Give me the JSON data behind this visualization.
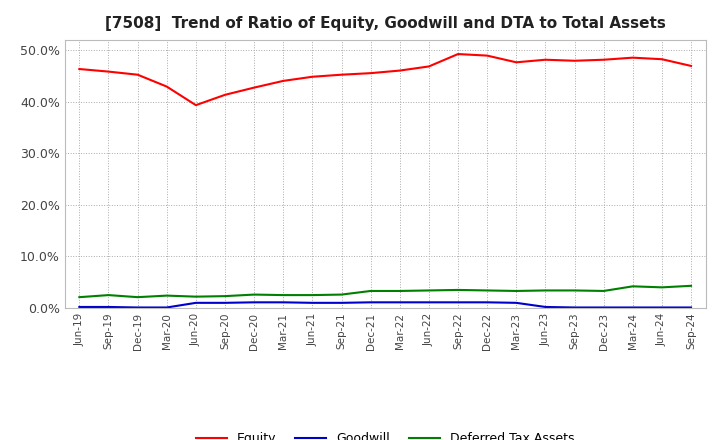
{
  "title": "[7508]  Trend of Ratio of Equity, Goodwill and DTA to Total Assets",
  "title_fontsize": 11,
  "ylim": [
    0.0,
    0.52
  ],
  "yticks": [
    0.0,
    0.1,
    0.2,
    0.3,
    0.4,
    0.5
  ],
  "x_labels": [
    "Jun-19",
    "Sep-19",
    "Dec-19",
    "Mar-20",
    "Jun-20",
    "Sep-20",
    "Dec-20",
    "Mar-21",
    "Jun-21",
    "Sep-21",
    "Dec-21",
    "Mar-22",
    "Jun-22",
    "Sep-22",
    "Dec-22",
    "Mar-23",
    "Jun-23",
    "Sep-23",
    "Dec-23",
    "Mar-24",
    "Jun-24",
    "Sep-24"
  ],
  "equity": [
    0.463,
    0.458,
    0.452,
    0.429,
    0.393,
    0.413,
    0.427,
    0.44,
    0.448,
    0.452,
    0.455,
    0.46,
    0.468,
    0.492,
    0.489,
    0.476,
    0.481,
    0.479,
    0.481,
    0.485,
    0.482,
    0.469
  ],
  "goodwill": [
    0.002,
    0.002,
    0.001,
    0.001,
    0.01,
    0.01,
    0.011,
    0.011,
    0.01,
    0.01,
    0.011,
    0.011,
    0.011,
    0.011,
    0.011,
    0.01,
    0.002,
    0.001,
    0.001,
    0.001,
    0.001,
    0.001
  ],
  "dta": [
    0.021,
    0.025,
    0.021,
    0.024,
    0.022,
    0.023,
    0.026,
    0.025,
    0.025,
    0.026,
    0.033,
    0.033,
    0.034,
    0.035,
    0.034,
    0.033,
    0.034,
    0.034,
    0.033,
    0.042,
    0.04,
    0.043
  ],
  "equity_color": "#ff0000",
  "goodwill_color": "#0000cc",
  "dta_color": "#008000",
  "line_width": 1.5,
  "bg_color": "#ffffff",
  "plot_bg_color": "#ffffff",
  "grid_color": "#aaaaaa",
  "legend_labels": [
    "Equity",
    "Goodwill",
    "Deferred Tax Assets"
  ]
}
